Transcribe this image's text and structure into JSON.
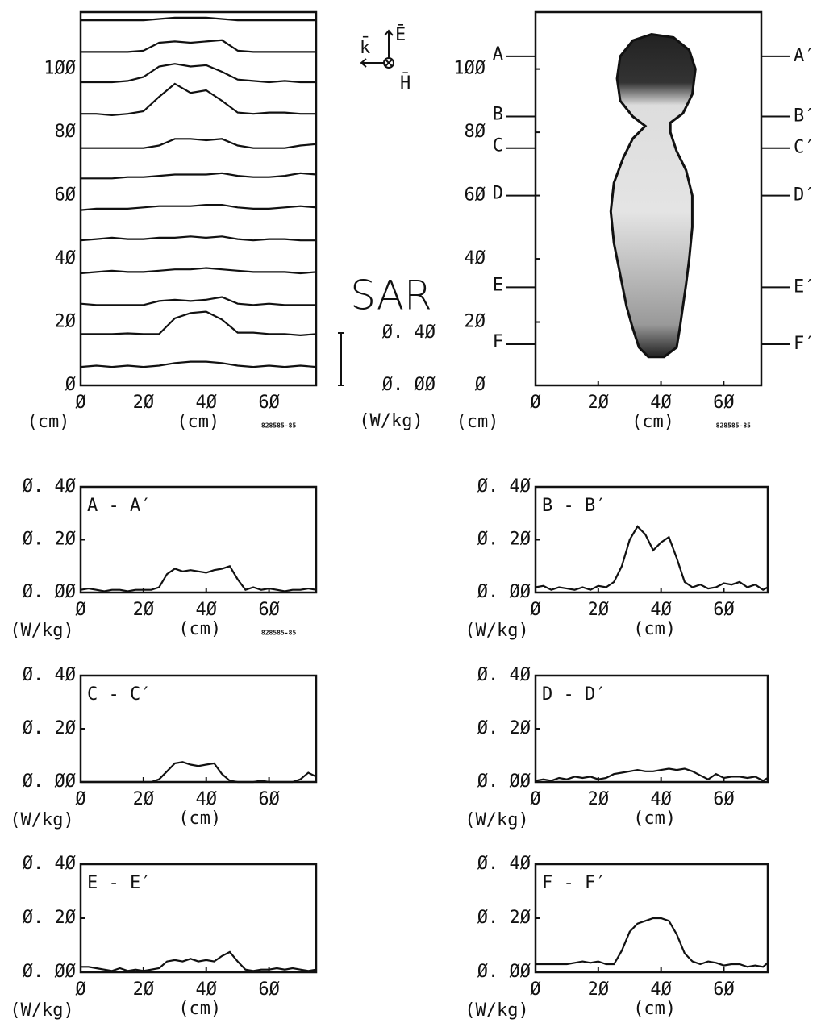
{
  "chart_data": [
    {
      "type": "ridgeline",
      "x_label": "(cm)",
      "y_label": "(cm)",
      "stamp": "828585-85",
      "xlim": [
        0,
        75
      ],
      "ylim": [
        0,
        118
      ],
      "xticks": [
        {
          "value": 0,
          "label": "Ø"
        },
        {
          "value": 20,
          "label": "2Ø"
        },
        {
          "value": 40,
          "label": "4Ø"
        },
        {
          "value": 60,
          "label": "6Ø"
        }
      ],
      "yticks": [
        {
          "value": 0,
          "label": "Ø"
        },
        {
          "value": 20,
          "label": "2Ø"
        },
        {
          "value": 40,
          "label": "4Ø"
        },
        {
          "value": 60,
          "label": "6Ø"
        },
        {
          "value": 80,
          "label": "8Ø"
        },
        {
          "value": 100,
          "label": "1ØØ"
        }
      ],
      "x": [
        0,
        5,
        10,
        15,
        20,
        25,
        30,
        35,
        40,
        45,
        50,
        55,
        60,
        65,
        70,
        75
      ],
      "rows_y": [
        5,
        15,
        25,
        35,
        45,
        55,
        65,
        75,
        85,
        95,
        105,
        115
      ],
      "rows": [
        [
          0.02,
          0.03,
          0.02,
          0.03,
          0.02,
          0.03,
          0.05,
          0.06,
          0.06,
          0.05,
          0.03,
          0.02,
          0.03,
          0.02,
          0.03,
          0.02
        ],
        [
          0.03,
          0.03,
          0.03,
          0.035,
          0.03,
          0.03,
          0.15,
          0.19,
          0.2,
          0.14,
          0.04,
          0.04,
          0.03,
          0.03,
          0.02,
          0.03
        ],
        [
          0.02,
          0.01,
          0.01,
          0.01,
          0.01,
          0.04,
          0.05,
          0.04,
          0.05,
          0.07,
          0.02,
          0.01,
          0.02,
          0.01,
          0.01,
          0.01
        ],
        [
          0.01,
          0.02,
          0.03,
          0.02,
          0.02,
          0.03,
          0.04,
          0.04,
          0.05,
          0.04,
          0.03,
          0.02,
          0.02,
          0.02,
          0.01,
          0.02
        ],
        [
          0.02,
          0.03,
          0.04,
          0.03,
          0.03,
          0.04,
          0.04,
          0.05,
          0.04,
          0.05,
          0.03,
          0.02,
          0.03,
          0.03,
          0.02,
          0.02
        ],
        [
          0.01,
          0.02,
          0.02,
          0.02,
          0.03,
          0.04,
          0.04,
          0.04,
          0.05,
          0.05,
          0.03,
          0.02,
          0.02,
          0.03,
          0.04,
          0.03
        ],
        [
          0.01,
          0.01,
          0.01,
          0.02,
          0.02,
          0.03,
          0.04,
          0.04,
          0.04,
          0.05,
          0.03,
          0.02,
          0.02,
          0.03,
          0.05,
          0.04
        ],
        [
          0,
          0,
          0,
          0,
          0,
          0.02,
          0.07,
          0.07,
          0.06,
          0.07,
          0.02,
          0,
          0,
          0,
          0.02,
          0.03
        ],
        [
          0.02,
          0.02,
          0.01,
          0.02,
          0.04,
          0.15,
          0.25,
          0.18,
          0.2,
          0.12,
          0.03,
          0.02,
          0.03,
          0.03,
          0.02,
          0.02
        ],
        [
          0.02,
          0.02,
          0.02,
          0.03,
          0.06,
          0.14,
          0.16,
          0.14,
          0.15,
          0.1,
          0.04,
          0.03,
          0.02,
          0.03,
          0.02,
          0.02
        ],
        [
          0.01,
          0.01,
          0.01,
          0.01,
          0.02,
          0.08,
          0.09,
          0.08,
          0.09,
          0.1,
          0.02,
          0.01,
          0.01,
          0.01,
          0.01,
          0.01
        ],
        [
          0.01,
          0.01,
          0.01,
          0.01,
          0.01,
          0.02,
          0.03,
          0.03,
          0.03,
          0.02,
          0.01,
          0.01,
          0.01,
          0.01,
          0.01,
          0.01
        ]
      ],
      "scale_title": "SAR",
      "scale_unit": "(W/kg)",
      "scale_ticks": [
        {
          "value": 0.4,
          "label": "Ø. 4Ø"
        },
        {
          "value": 0,
          "label": "Ø. ØØ"
        }
      ],
      "direction_labels": [
        "k̄",
        "Ē",
        "H̄"
      ]
    },
    {
      "type": "outline",
      "x_label": "(cm)",
      "y_label": "(cm)",
      "stamp": "828585-85",
      "xlim": [
        0,
        72
      ],
      "ylim": [
        0,
        118
      ],
      "xticks": [
        {
          "value": 0,
          "label": "Ø"
        },
        {
          "value": 20,
          "label": "2Ø"
        },
        {
          "value": 40,
          "label": "4Ø"
        },
        {
          "value": 60,
          "label": "6Ø"
        }
      ],
      "yticks": [
        {
          "value": 0,
          "label": "Ø"
        },
        {
          "value": 20,
          "label": "2Ø"
        },
        {
          "value": 40,
          "label": "4Ø"
        },
        {
          "value": 60,
          "label": "6Ø"
        },
        {
          "value": 80,
          "label": "8Ø"
        },
        {
          "value": 100,
          "label": "1ØØ"
        }
      ],
      "outline_x": [
        35,
        31,
        28,
        25,
        24,
        25,
        27,
        29,
        31,
        33,
        36,
        41,
        45,
        46,
        47,
        48,
        49,
        50,
        50,
        48,
        45,
        43,
        43,
        47,
        50,
        51,
        49,
        44,
        37,
        31,
        27,
        26,
        27,
        31
      ],
      "outline_y": [
        82,
        78,
        72,
        64,
        55,
        45,
        35,
        25,
        18,
        12,
        9,
        9,
        12,
        18,
        25,
        32,
        40,
        50,
        60,
        68,
        74,
        80,
        83,
        86,
        92,
        100,
        106,
        110,
        111,
        109,
        104,
        97,
        90,
        85
      ],
      "sections": [
        {
          "left": "A",
          "right": "A′",
          "y": 104
        },
        {
          "left": "B",
          "right": "B′",
          "y": 85
        },
        {
          "left": "C",
          "right": "C′",
          "y": 75
        },
        {
          "left": "D",
          "right": "D′",
          "y": 60
        },
        {
          "left": "E",
          "right": "E′",
          "y": 31
        },
        {
          "left": "F",
          "right": "F′",
          "y": 13
        }
      ]
    },
    {
      "type": "line",
      "title": "A - A′",
      "x_label": "(cm)",
      "y_label": "(W/kg)",
      "stamp": "828585-85",
      "xlim": [
        0,
        75
      ],
      "ylim": [
        0,
        0.4
      ],
      "xticks": [
        {
          "value": 0,
          "label": "Ø"
        },
        {
          "value": 20,
          "label": "2Ø"
        },
        {
          "value": 40,
          "label": "4Ø"
        },
        {
          "value": 60,
          "label": "6Ø"
        }
      ],
      "yticks": [
        {
          "value": 0,
          "label": "Ø. ØØ"
        },
        {
          "value": 0.2,
          "label": "Ø. 2Ø"
        },
        {
          "value": 0.4,
          "label": "Ø. 4Ø"
        }
      ],
      "x": [
        0,
        2.5,
        5,
        7.5,
        10,
        12.5,
        15,
        17.5,
        20,
        22.5,
        25,
        27.5,
        30,
        32.5,
        35,
        37.5,
        40,
        42.5,
        45,
        47.5,
        50,
        52.5,
        55,
        57.5,
        60,
        62.5,
        65,
        67.5,
        70,
        72.5,
        75
      ],
      "values": [
        0.01,
        0.015,
        0.01,
        0.005,
        0.01,
        0.01,
        0.005,
        0.01,
        0.01,
        0.01,
        0.02,
        0.07,
        0.09,
        0.08,
        0.085,
        0.08,
        0.075,
        0.085,
        0.09,
        0.1,
        0.05,
        0.01,
        0.02,
        0.01,
        0.015,
        0.01,
        0.005,
        0.01,
        0.01,
        0.015,
        0.01
      ]
    },
    {
      "type": "line",
      "title": "B - B′",
      "x_label": "(cm)",
      "y_label": "(W/kg)",
      "xlim": [
        0,
        74
      ],
      "ylim": [
        0,
        0.4
      ],
      "xticks": [
        {
          "value": 0,
          "label": "Ø"
        },
        {
          "value": 20,
          "label": "2Ø"
        },
        {
          "value": 40,
          "label": "4Ø"
        },
        {
          "value": 60,
          "label": "6Ø"
        }
      ],
      "yticks": [
        {
          "value": 0,
          "label": "Ø. ØØ"
        },
        {
          "value": 0.2,
          "label": "Ø. 2Ø"
        },
        {
          "value": 0.4,
          "label": "Ø. 4Ø"
        }
      ],
      "x": [
        0,
        2.5,
        5,
        7.5,
        10,
        12.5,
        15,
        17.5,
        20,
        22.5,
        25,
        27.5,
        30,
        32.5,
        35,
        37.5,
        40,
        42.5,
        45,
        47.5,
        50,
        52.5,
        55,
        57.5,
        60,
        62.5,
        65,
        67.5,
        70,
        72.5,
        74
      ],
      "values": [
        0.02,
        0.025,
        0.01,
        0.02,
        0.015,
        0.01,
        0.02,
        0.01,
        0.025,
        0.02,
        0.04,
        0.1,
        0.2,
        0.25,
        0.22,
        0.16,
        0.19,
        0.21,
        0.13,
        0.04,
        0.02,
        0.03,
        0.015,
        0.02,
        0.035,
        0.03,
        0.04,
        0.02,
        0.03,
        0.01,
        0.02
      ]
    },
    {
      "type": "line",
      "title": "C - C′",
      "x_label": "(cm)",
      "y_label": "(W/kg)",
      "xlim": [
        0,
        75
      ],
      "ylim": [
        0,
        0.4
      ],
      "xticks": [
        {
          "value": 0,
          "label": "Ø"
        },
        {
          "value": 20,
          "label": "2Ø"
        },
        {
          "value": 40,
          "label": "4Ø"
        },
        {
          "value": 60,
          "label": "6Ø"
        }
      ],
      "yticks": [
        {
          "value": 0,
          "label": "Ø. ØØ"
        },
        {
          "value": 0.2,
          "label": "Ø. 2Ø"
        },
        {
          "value": 0.4,
          "label": "Ø. 4Ø"
        }
      ],
      "x": [
        0,
        2.5,
        5,
        7.5,
        10,
        12.5,
        15,
        17.5,
        20,
        22.5,
        25,
        27.5,
        30,
        32.5,
        35,
        37.5,
        40,
        42.5,
        45,
        47.5,
        50,
        52.5,
        55,
        57.5,
        60,
        62.5,
        65,
        67.5,
        70,
        72.5,
        75
      ],
      "values": [
        0,
        0,
        0,
        0,
        0,
        0,
        0,
        0,
        0,
        0,
        0.01,
        0.04,
        0.07,
        0.075,
        0.065,
        0.06,
        0.065,
        0.07,
        0.03,
        0.005,
        0,
        0,
        0,
        0.005,
        0,
        0,
        0,
        0,
        0.01,
        0.035,
        0.02
      ]
    },
    {
      "type": "line",
      "title": "D - D′",
      "x_label": "(cm)",
      "y_label": "(W/kg)",
      "xlim": [
        0,
        74
      ],
      "ylim": [
        0,
        0.4
      ],
      "xticks": [
        {
          "value": 0,
          "label": "Ø"
        },
        {
          "value": 20,
          "label": "2Ø"
        },
        {
          "value": 40,
          "label": "4Ø"
        },
        {
          "value": 60,
          "label": "6Ø"
        }
      ],
      "yticks": [
        {
          "value": 0,
          "label": "Ø. ØØ"
        },
        {
          "value": 0.2,
          "label": "Ø. 2Ø"
        },
        {
          "value": 0.4,
          "label": "Ø. 4Ø"
        }
      ],
      "x": [
        0,
        2.5,
        5,
        7.5,
        10,
        12.5,
        15,
        17.5,
        20,
        22.5,
        25,
        27.5,
        30,
        32.5,
        35,
        37.5,
        40,
        42.5,
        45,
        47.5,
        50,
        52.5,
        55,
        57.5,
        60,
        62.5,
        65,
        67.5,
        70,
        72.5,
        74
      ],
      "values": [
        0.005,
        0.01,
        0.005,
        0.015,
        0.01,
        0.02,
        0.015,
        0.02,
        0.01,
        0.015,
        0.03,
        0.035,
        0.04,
        0.045,
        0.04,
        0.04,
        0.045,
        0.05,
        0.045,
        0.05,
        0.04,
        0.025,
        0.01,
        0.03,
        0.015,
        0.02,
        0.02,
        0.015,
        0.02,
        0.005,
        0.015
      ]
    },
    {
      "type": "line",
      "title": "E - E′",
      "x_label": "(cm)",
      "y_label": "(W/kg)",
      "xlim": [
        0,
        75
      ],
      "ylim": [
        0,
        0.4
      ],
      "xticks": [
        {
          "value": 0,
          "label": "Ø"
        },
        {
          "value": 20,
          "label": "2Ø"
        },
        {
          "value": 40,
          "label": "4Ø"
        },
        {
          "value": 60,
          "label": "6Ø"
        }
      ],
      "yticks": [
        {
          "value": 0,
          "label": "Ø. ØØ"
        },
        {
          "value": 0.2,
          "label": "Ø. 2Ø"
        },
        {
          "value": 0.4,
          "label": "Ø. 4Ø"
        }
      ],
      "x": [
        0,
        2.5,
        5,
        7.5,
        10,
        12.5,
        15,
        17.5,
        20,
        22.5,
        25,
        27.5,
        30,
        32.5,
        35,
        37.5,
        40,
        42.5,
        45,
        47.5,
        50,
        52.5,
        55,
        57.5,
        60,
        62.5,
        65,
        67.5,
        70,
        72.5,
        75
      ],
      "values": [
        0.02,
        0.02,
        0.015,
        0.01,
        0.005,
        0.015,
        0.005,
        0.01,
        0.005,
        0.01,
        0.015,
        0.04,
        0.045,
        0.04,
        0.05,
        0.04,
        0.045,
        0.04,
        0.06,
        0.075,
        0.04,
        0.01,
        0.005,
        0.01,
        0.01,
        0.015,
        0.01,
        0.015,
        0.01,
        0.005,
        0.01
      ]
    },
    {
      "type": "line",
      "title": "F - F′",
      "x_label": "(cm)",
      "y_label": "(W/kg)",
      "xlim": [
        0,
        74
      ],
      "ylim": [
        0,
        0.4
      ],
      "xticks": [
        {
          "value": 0,
          "label": "Ø"
        },
        {
          "value": 20,
          "label": "2Ø"
        },
        {
          "value": 40,
          "label": "4Ø"
        },
        {
          "value": 60,
          "label": "6Ø"
        }
      ],
      "yticks": [
        {
          "value": 0,
          "label": "Ø. ØØ"
        },
        {
          "value": 0.2,
          "label": "Ø. 2Ø"
        },
        {
          "value": 0.4,
          "label": "Ø. 4Ø"
        }
      ],
      "x": [
        0,
        2.5,
        5,
        7.5,
        10,
        12.5,
        15,
        17.5,
        20,
        22.5,
        25,
        27.5,
        30,
        32.5,
        35,
        37.5,
        40,
        42.5,
        45,
        47.5,
        50,
        52.5,
        55,
        57.5,
        60,
        62.5,
        65,
        67.5,
        70,
        72.5,
        74
      ],
      "values": [
        0.03,
        0.03,
        0.03,
        0.03,
        0.03,
        0.035,
        0.04,
        0.035,
        0.04,
        0.03,
        0.03,
        0.08,
        0.15,
        0.18,
        0.19,
        0.2,
        0.2,
        0.19,
        0.14,
        0.07,
        0.04,
        0.03,
        0.04,
        0.035,
        0.025,
        0.03,
        0.03,
        0.02,
        0.025,
        0.02,
        0.035
      ]
    }
  ]
}
